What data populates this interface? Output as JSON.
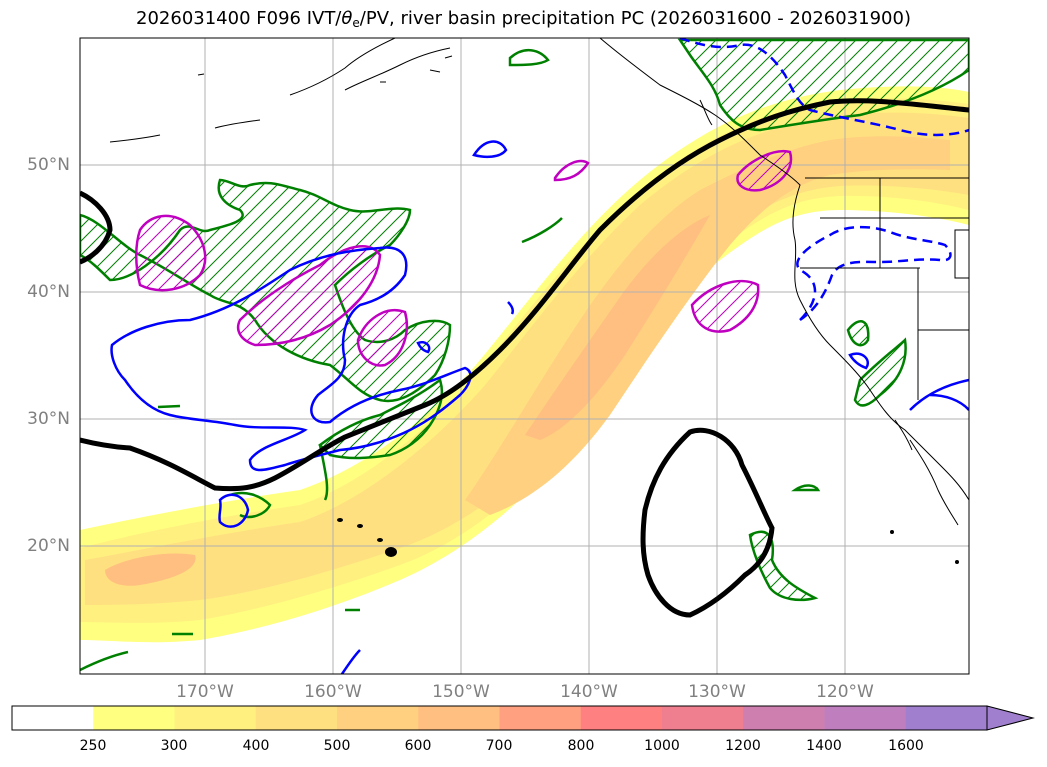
{
  "title": {
    "prefix": "2026031400 F096 IVT/",
    "theta": "θ",
    "theta_sub": "e",
    "suffix": "/PV, river basin precipitation PC (2026031600 - 2026031900)"
  },
  "axes": {
    "lat_labels": [
      "50°N",
      "40°N",
      "30°N",
      "20°N"
    ],
    "lon_labels": [
      "170°W",
      "160°W",
      "150°W",
      "140°W",
      "130°W",
      "120°W"
    ]
  },
  "colorbar": {
    "levels": [
      "250",
      "300",
      "400",
      "500",
      "600",
      "700",
      "800",
      "1000",
      "1200",
      "1400",
      "1600"
    ],
    "colors": [
      "#ffffff",
      "#ffff80",
      "#fff080",
      "#ffe080",
      "#ffd080",
      "#ffbf80",
      "#ffa080",
      "#ff8080",
      "#ef7f8f",
      "#cf7faf",
      "#bf7fbf",
      "#a07fcf"
    ]
  },
  "contour_colors": {
    "pv": "#000000",
    "theta_e_warm": "#0000ff",
    "theta_e_cold": "#0000ff",
    "hatch_green": "#008000",
    "hatch_magenta": "#c000c0"
  }
}
